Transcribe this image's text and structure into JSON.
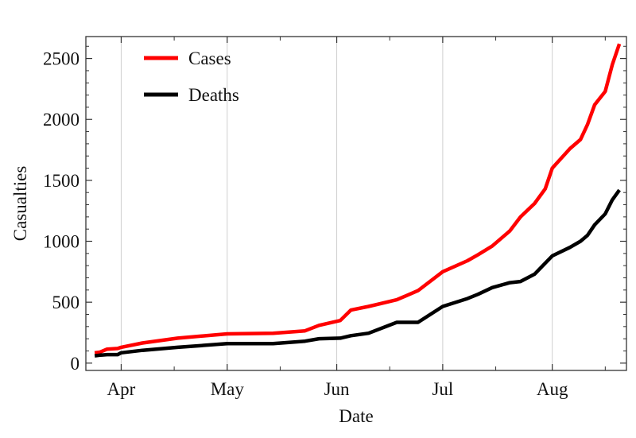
{
  "chart_data": {
    "type": "line",
    "title": "",
    "xlabel": "Date",
    "ylabel": "Casualties",
    "x_unit": "days since Apr 1",
    "xlim": [
      -10,
      143
    ],
    "ylim": [
      -60,
      2680
    ],
    "grid": "vertical at month starts",
    "x_ticks": [
      {
        "label": "Apr",
        "day": 0
      },
      {
        "label": "May",
        "day": 30
      },
      {
        "label": "Jun",
        "day": 61
      },
      {
        "label": "Jul",
        "day": 91
      },
      {
        "label": "Aug",
        "day": 122
      }
    ],
    "x_minor_ticks": [
      15,
      45,
      76,
      106,
      137
    ],
    "y_ticks": [
      0,
      500,
      1000,
      1500,
      2000,
      2500
    ],
    "legend": {
      "position": "top-left"
    },
    "series": [
      {
        "name": "Cases",
        "color": "#ff0000",
        "x": [
          -7.5,
          -6,
          -4,
          -1,
          0,
          6,
          16,
          30,
          43,
          52,
          56,
          62,
          65,
          70,
          78,
          84,
          91,
          98,
          101,
          105,
          110,
          113,
          117,
          120,
          122,
          127,
          130,
          132,
          134,
          137,
          139,
          141
        ],
        "y": [
          85,
          90,
          115,
          120,
          130,
          165,
          205,
          240,
          245,
          265,
          310,
          350,
          435,
          465,
          520,
          595,
          750,
          840,
          890,
          960,
          1085,
          1200,
          1310,
          1430,
          1600,
          1760,
          1835,
          1960,
          2120,
          2230,
          2450,
          2620
        ]
      },
      {
        "name": "Deaths",
        "color": "#000000",
        "x": [
          -7.5,
          -6,
          -4,
          -1,
          0,
          6,
          16,
          30,
          43,
          52,
          56,
          62,
          65,
          70,
          78,
          84,
          91,
          98,
          101,
          105,
          110,
          113,
          117,
          120,
          122,
          127,
          130,
          132,
          134,
          137,
          139,
          141
        ],
        "y": [
          60,
          65,
          70,
          70,
          85,
          105,
          130,
          160,
          160,
          180,
          200,
          205,
          225,
          245,
          335,
          335,
          465,
          530,
          565,
          620,
          660,
          670,
          730,
          820,
          880,
          950,
          1000,
          1050,
          1135,
          1225,
          1340,
          1420
        ]
      }
    ]
  }
}
